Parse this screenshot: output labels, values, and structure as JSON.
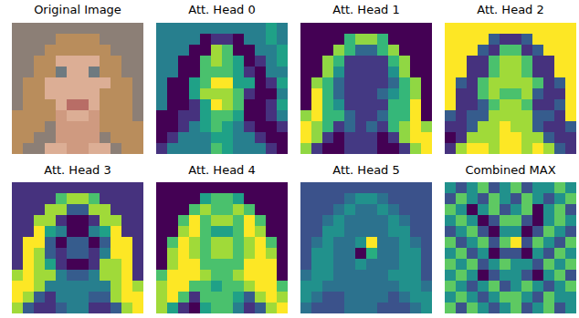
{
  "chart_data": [
    {
      "type": "image",
      "title": "Original Image",
      "pixels": [
        [
          "#8c7f76",
          "#8c7f76",
          "#8c7f76",
          "#8c7f76",
          "#8c7f76",
          "#8c7f76",
          "#8c7f76",
          "#8c7f76",
          "#8c7f76",
          "#8c7f76",
          "#8c7f76",
          "#8c7f76"
        ],
        [
          "#8c7f76",
          "#8c7f76",
          "#8c7f76",
          "#8c7f76",
          "#b98d5c",
          "#b98d5c",
          "#b98d5c",
          "#b98d5c",
          "#8c7f76",
          "#8c7f76",
          "#8c7f76",
          "#8c7f76"
        ],
        [
          "#8c7f76",
          "#8c7f76",
          "#8c7f76",
          "#b98d5c",
          "#b98d5c",
          "#b98d5c",
          "#b98d5c",
          "#b98d5c",
          "#b98d5c",
          "#8c7f76",
          "#8c7f76",
          "#8c7f76"
        ],
        [
          "#8c7f76",
          "#8c7f76",
          "#b98d5c",
          "#b98d5c",
          "#dcae95",
          "#dcae95",
          "#dcae95",
          "#dcae95",
          "#b98d5c",
          "#b98d5c",
          "#8c7f76",
          "#8c7f76"
        ],
        [
          "#8c7f76",
          "#8c7f76",
          "#b98d5c",
          "#b98d5c",
          "#6e7a80",
          "#dcae95",
          "#dcae95",
          "#6e7a80",
          "#b98d5c",
          "#b98d5c",
          "#8c7f76",
          "#8c7f76"
        ],
        [
          "#8c7f76",
          "#b98d5c",
          "#b98d5c",
          "#dcae95",
          "#dcae95",
          "#dcae95",
          "#dcae95",
          "#dcae95",
          "#dcae95",
          "#b98d5c",
          "#b98d5c",
          "#8c7f76"
        ],
        [
          "#8c7f76",
          "#b98d5c",
          "#b98d5c",
          "#dcae95",
          "#dcae95",
          "#dcae95",
          "#dcae95",
          "#dcae95",
          "#b98d5c",
          "#b98d5c",
          "#b98d5c",
          "#8c7f76"
        ],
        [
          "#8c7f76",
          "#b98d5c",
          "#b98d5c",
          "#b98d5c",
          "#dcae95",
          "#b86d66",
          "#b86d66",
          "#dcae95",
          "#b98d5c",
          "#b98d5c",
          "#b98d5c",
          "#8c7f76"
        ],
        [
          "#b98d5c",
          "#b98d5c",
          "#b98d5c",
          "#b98d5c",
          "#cf9a80",
          "#dcae95",
          "#dcae95",
          "#cf9a80",
          "#b98d5c",
          "#b98d5c",
          "#b98d5c",
          "#8c7f76"
        ],
        [
          "#b98d5c",
          "#b98d5c",
          "#b98d5c",
          "#8c7f76",
          "#cf9a80",
          "#cf9a80",
          "#cf9a80",
          "#cf9a80",
          "#b98d5c",
          "#b98d5c",
          "#b98d5c",
          "#b98d5c"
        ],
        [
          "#b98d5c",
          "#b98d5c",
          "#8c7f76",
          "#8c7f76",
          "#cf9a80",
          "#cf9a80",
          "#cf9a80",
          "#cf9a80",
          "#8c7f76",
          "#b98d5c",
          "#b98d5c",
          "#b98d5c"
        ],
        [
          "#b98d5c",
          "#8c7f76",
          "#8c7f76",
          "#dcae95",
          "#dcae95",
          "#cf9a80",
          "#cf9a80",
          "#dcae95",
          "#dcae95",
          "#8c7f76",
          "#b98d5c",
          "#b98d5c"
        ]
      ]
    },
    {
      "type": "heatmap",
      "title": "Att. Head 0",
      "cells": [
        [
          5,
          5,
          5,
          5,
          5,
          5,
          5,
          5,
          5,
          5,
          6,
          5
        ],
        [
          5,
          5,
          5,
          5,
          2,
          3,
          3,
          2,
          5,
          5,
          6,
          5
        ],
        [
          5,
          5,
          5,
          2,
          2,
          8,
          7,
          2,
          2,
          5,
          5,
          6
        ],
        [
          5,
          5,
          2,
          2,
          7,
          8,
          7,
          6,
          2,
          3,
          5,
          6
        ],
        [
          5,
          5,
          2,
          2,
          7,
          7,
          7,
          6,
          3,
          2,
          5,
          5
        ],
        [
          5,
          2,
          2,
          6,
          7,
          9,
          9,
          6,
          6,
          2,
          3,
          6
        ],
        [
          5,
          2,
          2,
          6,
          8,
          8,
          8,
          7,
          3,
          2,
          2,
          5
        ],
        [
          5,
          2,
          2,
          3,
          6,
          9,
          8,
          7,
          2,
          2,
          3,
          6
        ],
        [
          2,
          2,
          3,
          3,
          6,
          7,
          7,
          6,
          2,
          2,
          3,
          5
        ],
        [
          2,
          2,
          3,
          5,
          6,
          7,
          6,
          5,
          3,
          2,
          2,
          3
        ],
        [
          2,
          3,
          5,
          5,
          5,
          6,
          6,
          5,
          5,
          3,
          2,
          2
        ],
        [
          3,
          5,
          5,
          5,
          5,
          7,
          6,
          5,
          5,
          5,
          3,
          2
        ]
      ]
    },
    {
      "type": "heatmap",
      "title": "Att. Head 1",
      "cells": [
        [
          1,
          1,
          1,
          1,
          1,
          1,
          1,
          1,
          1,
          1,
          1,
          1
        ],
        [
          1,
          1,
          1,
          1,
          5,
          6,
          6,
          5,
          1,
          1,
          1,
          1
        ],
        [
          1,
          1,
          1,
          6,
          5,
          3,
          3,
          5,
          6,
          1,
          1,
          1
        ],
        [
          1,
          1,
          6,
          5,
          2,
          2,
          2,
          2,
          5,
          6,
          1,
          1
        ],
        [
          1,
          1,
          6,
          4,
          2,
          2,
          2,
          2,
          4,
          6,
          1,
          1
        ],
        [
          1,
          6,
          5,
          3,
          2,
          2,
          2,
          2,
          3,
          5,
          6,
          1
        ],
        [
          1,
          7,
          5,
          3,
          2,
          2,
          2,
          3,
          4,
          5,
          6,
          1
        ],
        [
          1,
          7,
          5,
          4,
          2,
          2,
          2,
          2,
          5,
          5,
          7,
          1
        ],
        [
          6,
          7,
          5,
          5,
          3,
          2,
          2,
          3,
          5,
          5,
          7,
          1
        ],
        [
          7,
          6,
          5,
          2,
          3,
          2,
          3,
          2,
          5,
          6,
          7,
          6
        ],
        [
          7,
          6,
          2,
          1,
          2,
          2,
          2,
          1,
          2,
          6,
          7,
          7
        ],
        [
          6,
          2,
          1,
          1,
          2,
          2,
          2,
          1,
          1,
          2,
          6,
          7
        ]
      ]
    },
    {
      "type": "heatmap",
      "title": "Att. Head 2",
      "cells": [
        [
          8,
          8,
          8,
          8,
          8,
          8,
          8,
          8,
          8,
          8,
          8,
          8
        ],
        [
          8,
          8,
          8,
          8,
          3,
          2,
          2,
          3,
          8,
          8,
          8,
          8
        ],
        [
          8,
          8,
          8,
          3,
          2,
          6,
          6,
          2,
          3,
          8,
          8,
          8
        ],
        [
          8,
          8,
          2,
          2,
          6,
          7,
          7,
          6,
          2,
          2,
          8,
          8
        ],
        [
          8,
          8,
          2,
          2,
          6,
          7,
          7,
          6,
          2,
          2,
          8,
          8
        ],
        [
          8,
          3,
          2,
          6,
          7,
          7,
          7,
          7,
          6,
          2,
          3,
          8
        ],
        [
          8,
          2,
          2,
          6,
          7,
          6,
          6,
          7,
          3,
          2,
          2,
          8
        ],
        [
          8,
          2,
          2,
          3,
          6,
          7,
          7,
          6,
          2,
          2,
          3,
          8
        ],
        [
          3,
          2,
          3,
          3,
          7,
          7,
          7,
          7,
          3,
          3,
          2,
          8
        ],
        [
          2,
          2,
          3,
          7,
          7,
          8,
          7,
          7,
          3,
          2,
          2,
          3
        ],
        [
          1,
          2,
          7,
          7,
          7,
          8,
          8,
          7,
          7,
          3,
          2,
          2
        ],
        [
          2,
          7,
          8,
          8,
          7,
          8,
          8,
          7,
          8,
          7,
          3,
          2
        ]
      ]
    },
    {
      "type": "heatmap",
      "title": "Att. Head 3",
      "cells": [
        [
          2,
          2,
          2,
          2,
          2,
          2,
          2,
          2,
          2,
          2,
          2,
          2
        ],
        [
          2,
          2,
          2,
          2,
          6,
          7,
          7,
          6,
          2,
          2,
          2,
          2
        ],
        [
          2,
          2,
          2,
          7,
          7,
          3,
          3,
          7,
          7,
          2,
          2,
          2
        ],
        [
          2,
          2,
          7,
          7,
          2,
          1,
          1,
          2,
          7,
          7,
          2,
          2
        ],
        [
          2,
          2,
          8,
          5,
          4,
          1,
          1,
          4,
          5,
          8,
          2,
          2
        ],
        [
          2,
          8,
          8,
          3,
          1,
          3,
          3,
          1,
          3,
          8,
          8,
          2
        ],
        [
          2,
          8,
          7,
          3,
          2,
          3,
          3,
          2,
          4,
          8,
          8,
          2
        ],
        [
          2,
          8,
          7,
          5,
          2,
          1,
          1,
          2,
          7,
          7,
          8,
          2
        ],
        [
          7,
          8,
          7,
          7,
          4,
          3,
          3,
          4,
          7,
          7,
          8,
          2
        ],
        [
          8,
          8,
          7,
          4,
          4,
          4,
          4,
          4,
          4,
          7,
          8,
          7
        ],
        [
          8,
          7,
          3,
          2,
          4,
          4,
          4,
          3,
          3,
          7,
          8,
          8
        ],
        [
          7,
          3,
          2,
          2,
          3,
          4,
          4,
          2,
          2,
          3,
          7,
          8
        ]
      ]
    },
    {
      "type": "heatmap",
      "title": "Att. Head 4",
      "cells": [
        [
          1,
          1,
          1,
          1,
          1,
          1,
          1,
          1,
          1,
          1,
          1,
          1
        ],
        [
          1,
          1,
          1,
          1,
          5,
          6,
          6,
          5,
          1,
          1,
          1,
          1
        ],
        [
          1,
          1,
          1,
          6,
          7,
          6,
          6,
          7,
          6,
          1,
          1,
          1
        ],
        [
          1,
          1,
          6,
          8,
          6,
          7,
          7,
          6,
          8,
          6,
          1,
          1
        ],
        [
          1,
          1,
          7,
          8,
          6,
          5,
          5,
          6,
          8,
          7,
          1,
          1
        ],
        [
          1,
          6,
          8,
          7,
          6,
          7,
          7,
          6,
          7,
          8,
          6,
          1
        ],
        [
          1,
          7,
          8,
          7,
          6,
          7,
          7,
          6,
          7,
          8,
          7,
          1
        ],
        [
          1,
          7,
          8,
          8,
          6,
          6,
          6,
          6,
          8,
          8,
          8,
          1
        ],
        [
          6,
          8,
          8,
          8,
          7,
          6,
          6,
          7,
          8,
          8,
          8,
          1
        ],
        [
          7,
          8,
          8,
          6,
          6,
          5,
          6,
          6,
          7,
          8,
          8,
          6
        ],
        [
          7,
          8,
          6,
          2,
          6,
          6,
          6,
          5,
          3,
          7,
          8,
          7
        ],
        [
          7,
          5,
          2,
          1,
          5,
          6,
          6,
          4,
          2,
          3,
          7,
          8
        ]
      ]
    },
    {
      "type": "heatmap",
      "title": "Att. Head 5",
      "cells": [
        [
          3,
          3,
          3,
          3,
          3,
          3,
          3,
          3,
          3,
          3,
          3,
          3
        ],
        [
          3,
          3,
          3,
          3,
          4,
          5,
          5,
          4,
          3,
          3,
          3,
          3
        ],
        [
          3,
          3,
          3,
          4,
          5,
          4,
          4,
          5,
          4,
          3,
          3,
          3
        ],
        [
          3,
          3,
          4,
          5,
          4,
          4,
          4,
          4,
          5,
          4,
          3,
          3
        ],
        [
          3,
          3,
          5,
          5,
          4,
          4,
          4,
          4,
          5,
          5,
          3,
          3
        ],
        [
          3,
          4,
          5,
          4,
          4,
          5,
          9,
          4,
          4,
          5,
          4,
          3
        ],
        [
          3,
          5,
          5,
          4,
          4,
          1,
          6,
          4,
          4,
          5,
          5,
          3
        ],
        [
          3,
          5,
          5,
          4,
          4,
          5,
          4,
          4,
          4,
          5,
          5,
          3
        ],
        [
          4,
          5,
          5,
          4,
          4,
          4,
          4,
          4,
          5,
          5,
          5,
          3
        ],
        [
          5,
          5,
          4,
          4,
          4,
          4,
          4,
          4,
          4,
          5,
          5,
          4
        ],
        [
          5,
          4,
          3,
          3,
          4,
          4,
          4,
          4,
          3,
          4,
          5,
          5
        ],
        [
          4,
          3,
          3,
          3,
          4,
          4,
          4,
          3,
          3,
          3,
          4,
          5
        ]
      ]
    },
    {
      "type": "heatmap",
      "title": "Combined MAX",
      "cells": [
        [
          7,
          6,
          7,
          8,
          6,
          7,
          8,
          6,
          7,
          7,
          8,
          7
        ],
        [
          6,
          8,
          7,
          6,
          8,
          7,
          6,
          8,
          7,
          6,
          7,
          8
        ],
        [
          8,
          7,
          5,
          7,
          8,
          6,
          7,
          8,
          5,
          7,
          8,
          6
        ],
        [
          7,
          8,
          7,
          5,
          6,
          8,
          8,
          6,
          5,
          7,
          8,
          7
        ],
        [
          6,
          7,
          8,
          6,
          5,
          7,
          7,
          5,
          6,
          8,
          7,
          6
        ],
        [
          8,
          6,
          7,
          8,
          6,
          8,
          9,
          6,
          8,
          7,
          6,
          8
        ],
        [
          7,
          8,
          6,
          7,
          5,
          6,
          6,
          5,
          7,
          6,
          8,
          7
        ],
        [
          8,
          7,
          8,
          6,
          7,
          8,
          7,
          7,
          6,
          8,
          7,
          8
        ],
        [
          7,
          8,
          7,
          5,
          6,
          7,
          7,
          6,
          5,
          7,
          8,
          6
        ],
        [
          8,
          7,
          6,
          7,
          8,
          6,
          7,
          8,
          7,
          6,
          7,
          8
        ],
        [
          7,
          8,
          7,
          6,
          7,
          8,
          8,
          7,
          6,
          8,
          7,
          7
        ],
        [
          8,
          6,
          8,
          7,
          6,
          7,
          8,
          6,
          7,
          8,
          6,
          7
        ]
      ]
    }
  ]
}
